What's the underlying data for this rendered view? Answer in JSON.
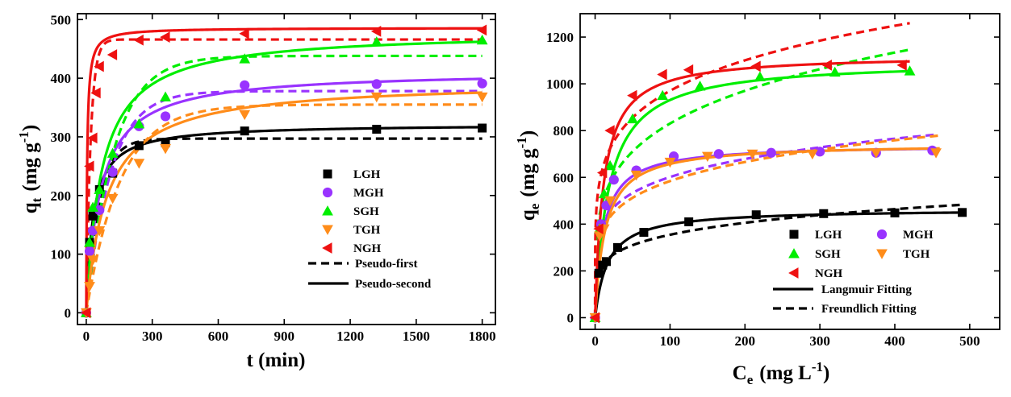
{
  "chart_data": [
    {
      "type": "scatter",
      "panel": "kinetics",
      "xlabel": "t (min)",
      "ylabel": "q_t (mg g^-1)",
      "xlabel_parts": {
        "main": "t (min)"
      },
      "ylabel_parts": {
        "q": "q",
        "sub": "t",
        "open": "(mg g",
        "sup": "-1",
        "close": ")"
      },
      "xlim": [
        -40,
        1860
      ],
      "ylim": [
        -20,
        510
      ],
      "xticks": [
        0,
        300,
        600,
        900,
        1200,
        1500,
        1800
      ],
      "yticks": [
        0,
        100,
        200,
        300,
        400,
        500
      ],
      "legend_position": "center-right",
      "line_styles": {
        "dashed": "Pseudo-first",
        "solid": "Pseudo-second"
      },
      "series": [
        {
          "name": "LGH",
          "color": "#000000",
          "marker": "square",
          "points": [
            [
              0,
              0
            ],
            [
              15,
              120
            ],
            [
              30,
              165
            ],
            [
              60,
              210
            ],
            [
              120,
              238
            ],
            [
              240,
              285
            ],
            [
              360,
              290
            ],
            [
              720,
              310
            ],
            [
              1320,
              313
            ],
            [
              1800,
              315
            ]
          ],
          "fit_first": {
            "qe": 297,
            "k": 0.017
          },
          "fit_second": {
            "qe": 322,
            "k": 0.0001
          }
        },
        {
          "name": "MGH",
          "color": "#9933ff",
          "marker": "circle",
          "points": [
            [
              0,
              0
            ],
            [
              15,
              105
            ],
            [
              30,
              140
            ],
            [
              60,
              175
            ],
            [
              120,
              240
            ],
            [
              240,
              318
            ],
            [
              360,
              335
            ],
            [
              720,
              388
            ],
            [
              1320,
              390
            ],
            [
              1800,
              391
            ]
          ],
          "fit_first": {
            "qe": 378,
            "k": 0.009
          },
          "fit_second": {
            "qe": 413,
            "k": 3.8e-05
          }
        },
        {
          "name": "SGH",
          "color": "#00ee00",
          "marker": "triangle-up",
          "points": [
            [
              0,
              0
            ],
            [
              15,
              120
            ],
            [
              30,
              180
            ],
            [
              60,
              210
            ],
            [
              120,
              272
            ],
            [
              240,
              322
            ],
            [
              360,
              368
            ],
            [
              720,
              433
            ],
            [
              1320,
              462
            ],
            [
              1800,
              465
            ]
          ],
          "fit_first": {
            "qe": 438,
            "k": 0.008
          },
          "fit_second": {
            "qe": 480,
            "k": 3e-05
          }
        },
        {
          "name": "TGH",
          "color": "#ff8c1a",
          "marker": "triangle-down",
          "points": [
            [
              0,
              0
            ],
            [
              15,
              45
            ],
            [
              30,
              90
            ],
            [
              60,
              140
            ],
            [
              120,
              195
            ],
            [
              240,
              255
            ],
            [
              360,
              280
            ],
            [
              720,
              338
            ],
            [
              1320,
              368
            ],
            [
              1800,
              368
            ]
          ],
          "fit_first": {
            "qe": 355,
            "k": 0.0065
          },
          "fit_second": {
            "qe": 395,
            "k": 2.7e-05
          }
        },
        {
          "name": "NGH",
          "color": "#ee1111",
          "marker": "triangle-left",
          "points": [
            [
              0,
              0
            ],
            [
              15,
              250
            ],
            [
              30,
              298
            ],
            [
              45,
              375
            ],
            [
              60,
              420
            ],
            [
              120,
              440
            ],
            [
              240,
              465
            ],
            [
              360,
              470
            ],
            [
              720,
              476
            ],
            [
              1320,
              480
            ],
            [
              1800,
              482
            ]
          ],
          "fit_first": {
            "qe": 466,
            "k": 0.05
          },
          "fit_second": {
            "qe": 486,
            "k": 0.00055
          }
        }
      ]
    },
    {
      "type": "scatter",
      "panel": "isotherms",
      "xlabel": "C_e (mg L^-1)",
      "ylabel": "q_e (mg g^-1)",
      "xlabel_parts": {
        "c": "C",
        "sub": "e",
        "open": "(mg L",
        "sup": "-1",
        "close": ")"
      },
      "ylabel_parts": {
        "q": "q",
        "sub": "e",
        "open": "(mg g",
        "sup": "-1",
        "close": ")"
      },
      "xlim": [
        -20,
        540
      ],
      "ylim": [
        -50,
        1300
      ],
      "xticks": [
        0,
        100,
        200,
        300,
        400,
        500
      ],
      "yticks": [
        0,
        200,
        400,
        600,
        800,
        1000,
        1200
      ],
      "legend_position": "bottom-right",
      "line_styles": {
        "solid": "Langmuir Fitting",
        "dashed": "Freundlich Fitting"
      },
      "series": [
        {
          "name": "LGH",
          "color": "#000000",
          "marker": "square",
          "points": [
            [
              0,
              0
            ],
            [
              5,
              190
            ],
            [
              10,
              225
            ],
            [
              15,
              240
            ],
            [
              30,
              300
            ],
            [
              65,
              365
            ],
            [
              125,
              410
            ],
            [
              215,
              440
            ],
            [
              305,
              445
            ],
            [
              400,
              448
            ],
            [
              490,
              450
            ]
          ],
          "fit_langmuir": {
            "qm": 465,
            "KL": 0.06,
            "xmax": 490
          },
          "fit_freundlich": {
            "KF": 145,
            "n": 5.15,
            "xmax": 490
          }
        },
        {
          "name": "MGH",
          "color": "#9933ff",
          "marker": "circle",
          "points": [
            [
              0,
              0
            ],
            [
              8,
              400
            ],
            [
              15,
              480
            ],
            [
              25,
              590
            ],
            [
              55,
              630
            ],
            [
              105,
              690
            ],
            [
              165,
              700
            ],
            [
              235,
              705
            ],
            [
              300,
              710
            ],
            [
              375,
              705
            ],
            [
              450,
              715
            ]
          ],
          "fit_langmuir": {
            "qm": 740,
            "KL": 0.09,
            "xmax": 455
          },
          "fit_freundlich": {
            "KF": 270,
            "n": 5.75,
            "xmax": 455
          }
        },
        {
          "name": "SGH",
          "color": "#00ee00",
          "marker": "triangle-up",
          "points": [
            [
              0,
              0
            ],
            [
              6,
              380
            ],
            [
              12,
              530
            ],
            [
              20,
              650
            ],
            [
              50,
              850
            ],
            [
              90,
              950
            ],
            [
              140,
              990
            ],
            [
              220,
              1030
            ],
            [
              320,
              1050
            ],
            [
              420,
              1055
            ]
          ],
          "fit_langmuir": {
            "qm": 1100,
            "KL": 0.055,
            "xmax": 422
          },
          "fit_freundlich": {
            "KF": 295,
            "n": 4.45,
            "xmax": 422
          }
        },
        {
          "name": "TGH",
          "color": "#ff8c1a",
          "marker": "triangle-down",
          "points": [
            [
              0,
              0
            ],
            [
              6,
              350
            ],
            [
              12,
              380
            ],
            [
              20,
              500
            ],
            [
              55,
              610
            ],
            [
              100,
              665
            ],
            [
              150,
              690
            ],
            [
              210,
              700
            ],
            [
              290,
              700
            ],
            [
              375,
              705
            ],
            [
              455,
              705
            ]
          ],
          "fit_langmuir": {
            "qm": 745,
            "KL": 0.075,
            "xmax": 460
          },
          "fit_freundlich": {
            "KF": 245,
            "n": 5.3,
            "xmax": 460
          }
        },
        {
          "name": "NGH",
          "color": "#ee1111",
          "marker": "triangle-left",
          "points": [
            [
              0,
              0
            ],
            [
              5,
              380
            ],
            [
              10,
              620
            ],
            [
              20,
              800
            ],
            [
              50,
              950
            ],
            [
              90,
              1040
            ],
            [
              125,
              1060
            ],
            [
              215,
              1075
            ],
            [
              310,
              1080
            ],
            [
              410,
              1080
            ]
          ],
          "fit_langmuir": {
            "qm": 1125,
            "KL": 0.09,
            "xmax": 420
          },
          "fit_freundlich": {
            "KF": 420,
            "n": 5.5,
            "xmax": 420
          }
        }
      ]
    }
  ]
}
